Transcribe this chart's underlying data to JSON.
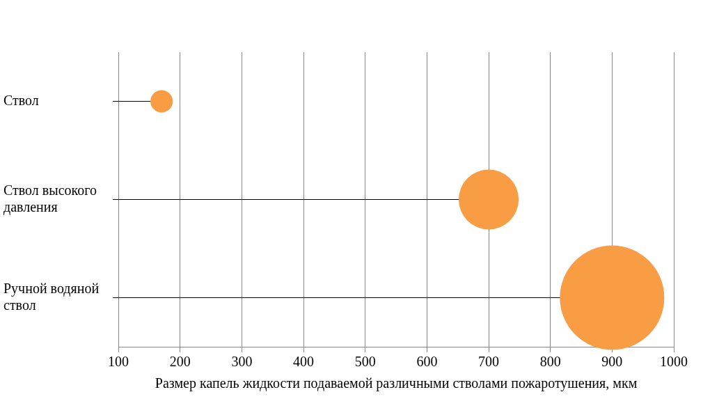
{
  "chart_data": {
    "type": "bubble",
    "orientation": "horizontal",
    "xlabel": "Размер капель жидкости подаваемой различными стволами пожаротушения, мкм",
    "categories": [
      "Ствол",
      "Ствол высокого давления",
      "Ручной водяной ствол"
    ],
    "values": [
      170,
      700,
      900
    ],
    "sizes": [
      0.046,
      0.33,
      1
    ],
    "color": "#f99d45",
    "xlim": [
      100,
      1000
    ],
    "xticks": [
      100,
      200,
      300,
      400,
      500,
      600,
      700,
      800,
      900,
      1000
    ],
    "grid": "x",
    "legend": false
  }
}
